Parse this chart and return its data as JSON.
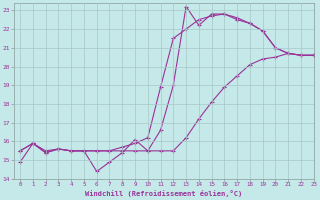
{
  "background_color": "#c5e8e8",
  "grid_color": "#a8c8c8",
  "line_color": "#993399",
  "xlim": [
    -0.5,
    23
  ],
  "ylim": [
    14,
    23.4
  ],
  "yticks": [
    14,
    15,
    16,
    17,
    18,
    19,
    20,
    21,
    22,
    23
  ],
  "xticks": [
    0,
    1,
    2,
    3,
    4,
    5,
    6,
    7,
    8,
    9,
    10,
    11,
    12,
    13,
    14,
    15,
    16,
    17,
    18,
    19,
    20,
    21,
    22,
    23
  ],
  "xlabel": "Windchill (Refroidissement éolien,°C)",
  "line1_x": [
    0,
    1,
    2,
    3,
    4,
    5,
    6,
    7,
    8,
    9,
    10,
    11,
    12,
    13,
    14,
    15,
    16,
    17,
    18,
    19,
    20,
    21,
    22,
    23
  ],
  "line1_y": [
    14.9,
    15.9,
    15.4,
    15.6,
    15.5,
    15.5,
    14.4,
    14.9,
    15.4,
    16.1,
    15.5,
    16.6,
    19.0,
    23.2,
    22.2,
    22.8,
    22.8,
    22.6,
    22.3,
    21.9,
    21.0,
    20.7,
    20.6,
    20.6
  ],
  "line2_x": [
    0,
    1,
    2,
    3,
    4,
    5,
    6,
    7,
    8,
    9,
    10,
    11,
    12,
    13,
    14,
    15,
    16,
    17,
    18,
    19,
    20,
    21,
    22,
    23
  ],
  "line2_y": [
    15.5,
    15.9,
    15.4,
    15.6,
    15.5,
    15.5,
    15.5,
    15.5,
    15.7,
    15.9,
    16.2,
    18.9,
    21.5,
    22.0,
    22.5,
    22.7,
    22.8,
    22.5,
    22.3,
    21.9,
    21.0,
    20.7,
    20.6,
    20.6
  ],
  "line3_x": [
    0,
    1,
    2,
    3,
    4,
    5,
    6,
    7,
    8,
    9,
    10,
    11,
    12,
    13,
    14,
    15,
    16,
    17,
    18,
    19,
    20,
    21,
    22,
    23
  ],
  "line3_y": [
    15.5,
    15.9,
    15.5,
    15.6,
    15.5,
    15.5,
    15.5,
    15.5,
    15.5,
    15.5,
    15.5,
    15.5,
    15.5,
    16.2,
    17.2,
    18.1,
    18.9,
    19.5,
    20.1,
    20.4,
    20.5,
    20.7,
    20.6,
    20.6
  ]
}
